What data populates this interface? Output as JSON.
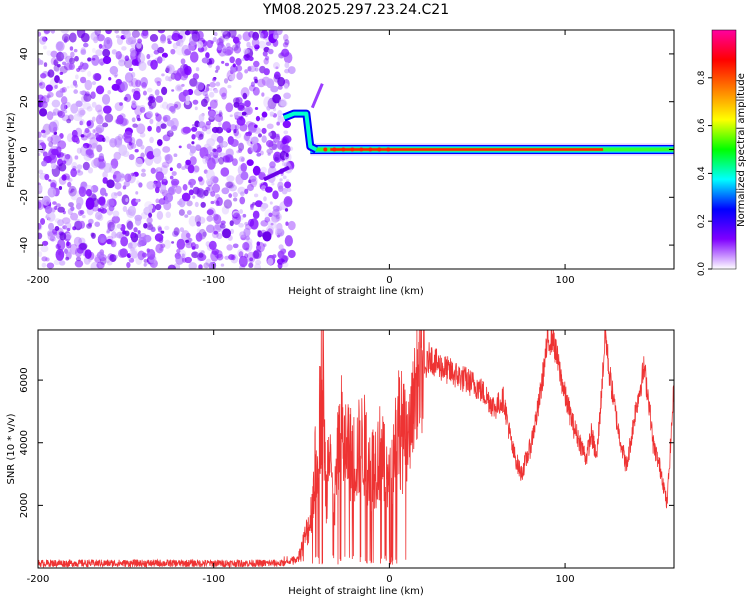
{
  "title": "YM08.2025.297.23.24.C21",
  "chart_data": [
    {
      "type": "heatmap",
      "name": "spectrogram",
      "xlabel": "Height of straight line (km)",
      "ylabel": "Frequency (Hz)",
      "xlim": [
        -200,
        162
      ],
      "ylim": [
        -50,
        50
      ],
      "xticks": [
        -200,
        -100,
        0,
        100
      ],
      "yticks": [
        -40,
        -20,
        0,
        20,
        40
      ],
      "colorbar": {
        "label": "Normalized spectral amplitude",
        "range": [
          0,
          1
        ],
        "ticks": [
          0.0,
          0.2,
          0.4,
          0.6,
          0.8
        ],
        "colormap": [
          "#ffffff",
          "#7f00ff",
          "#0000ff",
          "#00ffff",
          "#00ff00",
          "#ffff00",
          "#ff8000",
          "#ff0000",
          "#ff00a0"
        ]
      },
      "regions": [
        {
          "description": "diffuse purple noise",
          "x": [
            -200,
            -60
          ],
          "freq": [
            -50,
            50
          ],
          "amplitude": 0.05
        },
        {
          "description": "narrow carrier line",
          "x": [
            -45,
            162
          ],
          "freq": [
            0,
            0
          ],
          "amplitude": 0.95
        },
        {
          "description": "line jump",
          "x": [
            -60,
            -45
          ],
          "freq": [
            10,
            15
          ],
          "amplitude": 0.5
        }
      ]
    },
    {
      "type": "line",
      "name": "snr",
      "xlabel": "Height of straight line (km)",
      "ylabel": "SNR (10 * v/v)",
      "xlim": [
        -200,
        162
      ],
      "ylim": [
        0,
        7600
      ],
      "xticks": [
        -200,
        -100,
        0,
        100
      ],
      "yticks": [
        2000,
        4000,
        6000
      ],
      "color": "#ee3333",
      "series": [
        {
          "name": "SNR",
          "x": [
            -200,
            -150,
            -100,
            -60,
            -52,
            -45,
            -40,
            -38,
            -36,
            -34,
            -32,
            -30,
            -28,
            -25,
            -20,
            -15,
            -10,
            -5,
            0,
            5,
            10,
            15,
            20,
            23,
            25,
            30,
            40,
            50,
            55,
            60,
            65,
            70,
            75,
            80,
            85,
            90,
            93,
            95,
            100,
            105,
            110,
            112,
            115,
            118,
            120,
            123,
            125,
            130,
            135,
            140,
            145,
            148,
            150,
            155,
            158,
            162
          ],
          "y": [
            150,
            150,
            150,
            150,
            300,
            1500,
            4500,
            6500,
            2000,
            5000,
            1500,
            3000,
            4500,
            3800,
            3500,
            4000,
            3200,
            3700,
            2500,
            4800,
            3800,
            5800,
            6200,
            6800,
            6600,
            6400,
            6100,
            5800,
            5500,
            5100,
            5400,
            3800,
            3000,
            3800,
            5200,
            7200,
            7400,
            6800,
            5500,
            4500,
            3800,
            3500,
            4300,
            3500,
            5000,
            7500,
            6300,
            4500,
            3200,
            5000,
            6400,
            5200,
            4000,
            3000,
            2000,
            5800
          ]
        }
      ]
    }
  ]
}
